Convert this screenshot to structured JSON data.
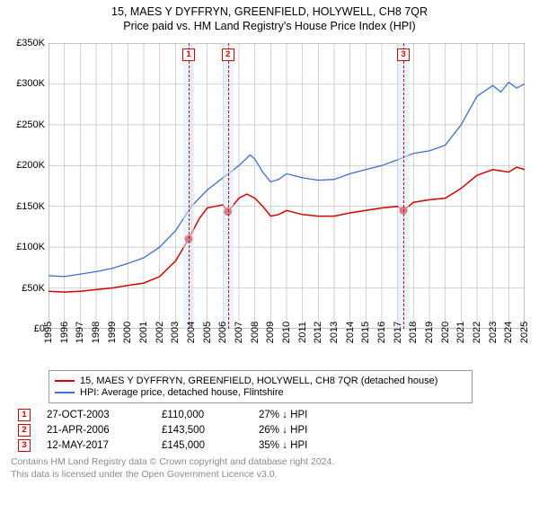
{
  "title_line1": "15, MAES Y DYFFRYN, GREENFIELD, HOLYWELL, CH8 7QR",
  "title_line2": "Price paid vs. HM Land Registry's House Price Index (HPI)",
  "chart": {
    "type": "line",
    "background_color": "#ffffff",
    "grid_color": "#bfbfbf",
    "xlim": [
      1995,
      2025
    ],
    "ylim": [
      0,
      350000
    ],
    "x_ticks": [
      1995,
      1996,
      1997,
      1998,
      1999,
      2000,
      2001,
      2002,
      2003,
      2004,
      2005,
      2006,
      2007,
      2008,
      2009,
      2010,
      2011,
      2012,
      2013,
      2014,
      2015,
      2016,
      2017,
      2018,
      2019,
      2020,
      2021,
      2022,
      2023,
      2024,
      2025
    ],
    "x_tick_labels": [
      "1995",
      "1996",
      "1997",
      "1998",
      "1999",
      "2000",
      "2001",
      "2002",
      "2003",
      "2004",
      "2005",
      "2006",
      "2007",
      "2008",
      "2009",
      "2010",
      "2011",
      "2012",
      "2013",
      "2014",
      "2015",
      "2016",
      "2017",
      "2018",
      "2019",
      "2020",
      "2021",
      "2022",
      "2023",
      "2024",
      "2025"
    ],
    "y_ticks": [
      0,
      50000,
      100000,
      150000,
      200000,
      250000,
      300000,
      350000
    ],
    "y_tick_labels": [
      "£0",
      "£50K",
      "£100K",
      "£150K",
      "£200K",
      "£250K",
      "£300K",
      "£350K"
    ],
    "label_fontsize": 11,
    "band_color": "#d7e8fb",
    "band_opacity": 0.55,
    "series": [
      {
        "name": "subject_property",
        "label": "15, MAES Y DYFFRYN, GREENFIELD, HOLYWELL, CH8 7QR (detached house)",
        "color": "#d30000",
        "line_width": 1.5,
        "points": [
          [
            1995.0,
            46000
          ],
          [
            1996.0,
            45000
          ],
          [
            1997.0,
            46000
          ],
          [
            1998.0,
            48000
          ],
          [
            1999.0,
            50000
          ],
          [
            2000.0,
            53000
          ],
          [
            2001.0,
            56000
          ],
          [
            2002.0,
            64000
          ],
          [
            2003.0,
            83000
          ],
          [
            2003.83,
            110000
          ],
          [
            2004.5,
            135000
          ],
          [
            2005.0,
            148000
          ],
          [
            2005.5,
            150000
          ],
          [
            2006.0,
            152000
          ],
          [
            2006.3,
            143500
          ],
          [
            2007.0,
            160000
          ],
          [
            2007.5,
            165000
          ],
          [
            2008.0,
            160000
          ],
          [
            2008.5,
            150000
          ],
          [
            2009.0,
            138000
          ],
          [
            2009.5,
            140000
          ],
          [
            2010.0,
            145000
          ],
          [
            2011.0,
            140000
          ],
          [
            2012.0,
            138000
          ],
          [
            2013.0,
            138000
          ],
          [
            2014.0,
            142000
          ],
          [
            2015.0,
            145000
          ],
          [
            2016.0,
            148000
          ],
          [
            2017.0,
            150000
          ],
          [
            2017.36,
            145000
          ],
          [
            2018.0,
            155000
          ],
          [
            2019.0,
            158000
          ],
          [
            2020.0,
            160000
          ],
          [
            2021.0,
            172000
          ],
          [
            2022.0,
            188000
          ],
          [
            2023.0,
            195000
          ],
          [
            2024.0,
            192000
          ],
          [
            2024.5,
            198000
          ],
          [
            2025.0,
            195000
          ]
        ]
      },
      {
        "name": "hpi",
        "label": "HPI: Average price, detached house, Flintshire",
        "color": "#3b6fc9",
        "line_width": 1.3,
        "points": [
          [
            1995.0,
            65000
          ],
          [
            1996.0,
            64000
          ],
          [
            1997.0,
            67000
          ],
          [
            1998.0,
            70000
          ],
          [
            1999.0,
            74000
          ],
          [
            2000.0,
            80000
          ],
          [
            2001.0,
            87000
          ],
          [
            2002.0,
            100000
          ],
          [
            2003.0,
            120000
          ],
          [
            2004.0,
            150000
          ],
          [
            2005.0,
            170000
          ],
          [
            2006.0,
            185000
          ],
          [
            2007.0,
            200000
          ],
          [
            2007.7,
            213000
          ],
          [
            2008.0,
            208000
          ],
          [
            2008.5,
            192000
          ],
          [
            2009.0,
            180000
          ],
          [
            2009.5,
            183000
          ],
          [
            2010.0,
            190000
          ],
          [
            2011.0,
            185000
          ],
          [
            2012.0,
            182000
          ],
          [
            2013.0,
            183000
          ],
          [
            2014.0,
            190000
          ],
          [
            2015.0,
            195000
          ],
          [
            2016.0,
            200000
          ],
          [
            2017.0,
            207000
          ],
          [
            2018.0,
            215000
          ],
          [
            2019.0,
            218000
          ],
          [
            2020.0,
            225000
          ],
          [
            2021.0,
            250000
          ],
          [
            2022.0,
            285000
          ],
          [
            2023.0,
            298000
          ],
          [
            2023.5,
            290000
          ],
          [
            2024.0,
            302000
          ],
          [
            2024.5,
            295000
          ],
          [
            2025.0,
            300000
          ]
        ]
      }
    ],
    "sale_markers": [
      {
        "n": "1",
        "x": 2003.83,
        "y": 110000
      },
      {
        "n": "2",
        "x": 2006.3,
        "y": 143500
      },
      {
        "n": "3",
        "x": 2017.36,
        "y": 145000
      }
    ]
  },
  "legend": {
    "series0": "15, MAES Y DYFFRYN, GREENFIELD, HOLYWELL, CH8 7QR (detached house)",
    "series1": "HPI: Average price, detached house, Flintshire"
  },
  "transactions": [
    {
      "n": "1",
      "date": "27-OCT-2003",
      "price": "£110,000",
      "pct": "27% ↓ HPI",
      "color": "#d30000"
    },
    {
      "n": "2",
      "date": "21-APR-2006",
      "price": "£143,500",
      "pct": "26% ↓ HPI",
      "color": "#d30000"
    },
    {
      "n": "3",
      "date": "12-MAY-2017",
      "price": "£145,000",
      "pct": "35% ↓ HPI",
      "color": "#d30000"
    }
  ],
  "attribution": {
    "line1": "Contains HM Land Registry data © Crown copyright and database right 2024.",
    "line2": "This data is licensed under the Open Government Licence v3.0."
  },
  "colors": {
    "marker_border": "#d30000",
    "vline": "#d30000"
  }
}
